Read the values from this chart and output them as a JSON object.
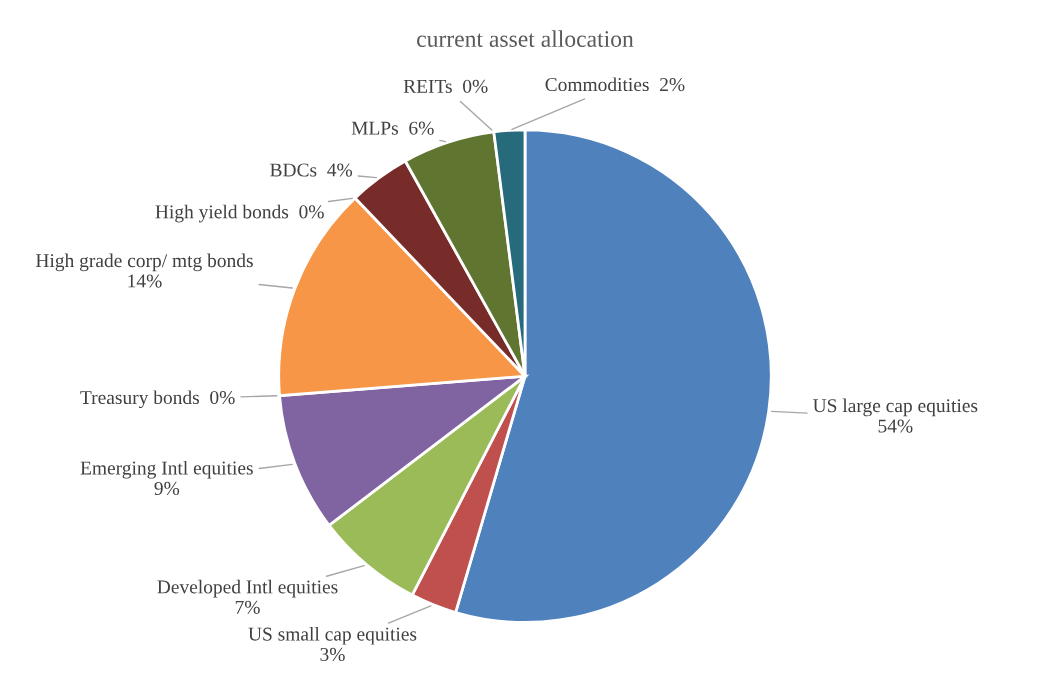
{
  "chart_data": {
    "type": "pie",
    "title": "current asset allocation",
    "categories": [
      "US large cap equities",
      "US small cap equities",
      "Developed Intl equities",
      "Emerging Intl equities",
      "Treasury bonds",
      "High grade corp/ mtg bonds",
      "High yield bonds",
      "BDCs",
      "MLPs",
      "REITs",
      "Commodities"
    ],
    "values": [
      54,
      3,
      7,
      9,
      0,
      14,
      0,
      4,
      6,
      0,
      2
    ],
    "colors": [
      "#4f81bd",
      "#c0504d",
      "#9bbb59",
      "#8064a2",
      "#4bacc6",
      "#f79646",
      "#2c4d75",
      "#772c2a",
      "#5f7530",
      "#4d3b62",
      "#276a7c"
    ],
    "value_labels": [
      "54%",
      "3%",
      "7%",
      "9%",
      "0%",
      "14%",
      "0%",
      "4%",
      "6%",
      "0%",
      "2%"
    ]
  }
}
